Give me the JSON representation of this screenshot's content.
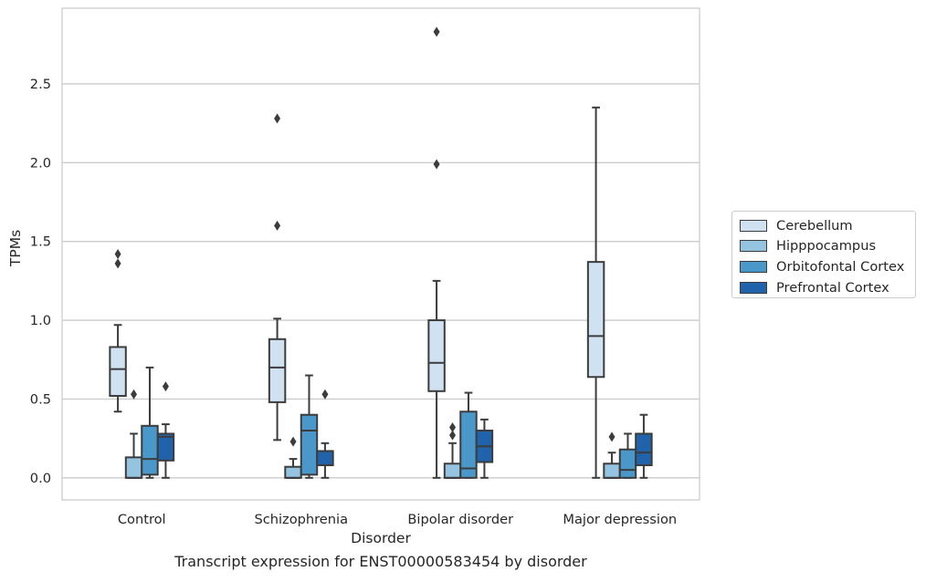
{
  "chart_data": {
    "type": "box",
    "xlabel": "Disorder",
    "ylabel": "TPMs",
    "caption": "Transcript expression for ENST00000583454 by disorder",
    "categories": [
      "Control",
      "Schizophrenia",
      "Bipolar disorder",
      "Major depression"
    ],
    "ylim": [
      -0.14,
      2.98
    ],
    "yticks": [
      "0.0",
      "0.5",
      "1.0",
      "1.5",
      "2.0",
      "2.5"
    ],
    "grid": "horizontal",
    "legend_position": "right",
    "series": [
      {
        "name": "Cerebellum",
        "color": "#d0e1f2",
        "boxes": [
          {
            "whislo": 0.42,
            "q1": 0.52,
            "med": 0.69,
            "q3": 0.83,
            "whishi": 0.97,
            "fliers": [
              1.36,
              1.42
            ]
          },
          {
            "whislo": 0.24,
            "q1": 0.48,
            "med": 0.7,
            "q3": 0.88,
            "whishi": 1.01,
            "fliers": [
              1.6,
              2.28
            ]
          },
          {
            "whislo": 0.0,
            "q1": 0.55,
            "med": 0.73,
            "q3": 1.0,
            "whishi": 1.25,
            "fliers": [
              1.99,
              2.83
            ]
          },
          {
            "whislo": 0.0,
            "q1": 0.64,
            "med": 0.9,
            "q3": 1.37,
            "whishi": 2.35,
            "fliers": []
          }
        ]
      },
      {
        "name": "Hipppocampus",
        "color": "#94c4df",
        "boxes": [
          {
            "whislo": 0.0,
            "q1": 0.0,
            "med": 0.0,
            "q3": 0.13,
            "whishi": 0.28,
            "fliers": [
              0.53
            ]
          },
          {
            "whislo": 0.0,
            "q1": 0.0,
            "med": 0.0,
            "q3": 0.07,
            "whishi": 0.12,
            "fliers": [
              0.23
            ]
          },
          {
            "whislo": 0.0,
            "q1": 0.0,
            "med": 0.0,
            "q3": 0.09,
            "whishi": 0.22,
            "fliers": [
              0.27,
              0.32
            ]
          },
          {
            "whislo": 0.0,
            "q1": 0.0,
            "med": 0.0,
            "q3": 0.09,
            "whishi": 0.16,
            "fliers": [
              0.26
            ]
          }
        ]
      },
      {
        "name": "Orbitofontal Cortex",
        "color": "#4a98c9",
        "boxes": [
          {
            "whislo": 0.0,
            "q1": 0.02,
            "med": 0.12,
            "q3": 0.33,
            "whishi": 0.7,
            "fliers": []
          },
          {
            "whislo": 0.0,
            "q1": 0.02,
            "med": 0.3,
            "q3": 0.4,
            "whishi": 0.65,
            "fliers": []
          },
          {
            "whislo": 0.0,
            "q1": 0.0,
            "med": 0.06,
            "q3": 0.42,
            "whishi": 0.54,
            "fliers": []
          },
          {
            "whislo": 0.0,
            "q1": 0.0,
            "med": 0.05,
            "q3": 0.18,
            "whishi": 0.28,
            "fliers": []
          }
        ]
      },
      {
        "name": "Prefrontal Cortex",
        "color": "#2163aa",
        "boxes": [
          {
            "whislo": 0.0,
            "q1": 0.11,
            "med": 0.26,
            "q3": 0.28,
            "whishi": 0.34,
            "fliers": [
              0.58
            ]
          },
          {
            "whislo": 0.0,
            "q1": 0.08,
            "med": 0.17,
            "q3": 0.17,
            "whishi": 0.22,
            "fliers": [
              0.53
            ]
          },
          {
            "whislo": 0.0,
            "q1": 0.1,
            "med": 0.2,
            "q3": 0.3,
            "whishi": 0.37,
            "fliers": []
          },
          {
            "whislo": 0.0,
            "q1": 0.08,
            "med": 0.16,
            "q3": 0.28,
            "whishi": 0.4,
            "fliers": []
          }
        ]
      }
    ]
  }
}
